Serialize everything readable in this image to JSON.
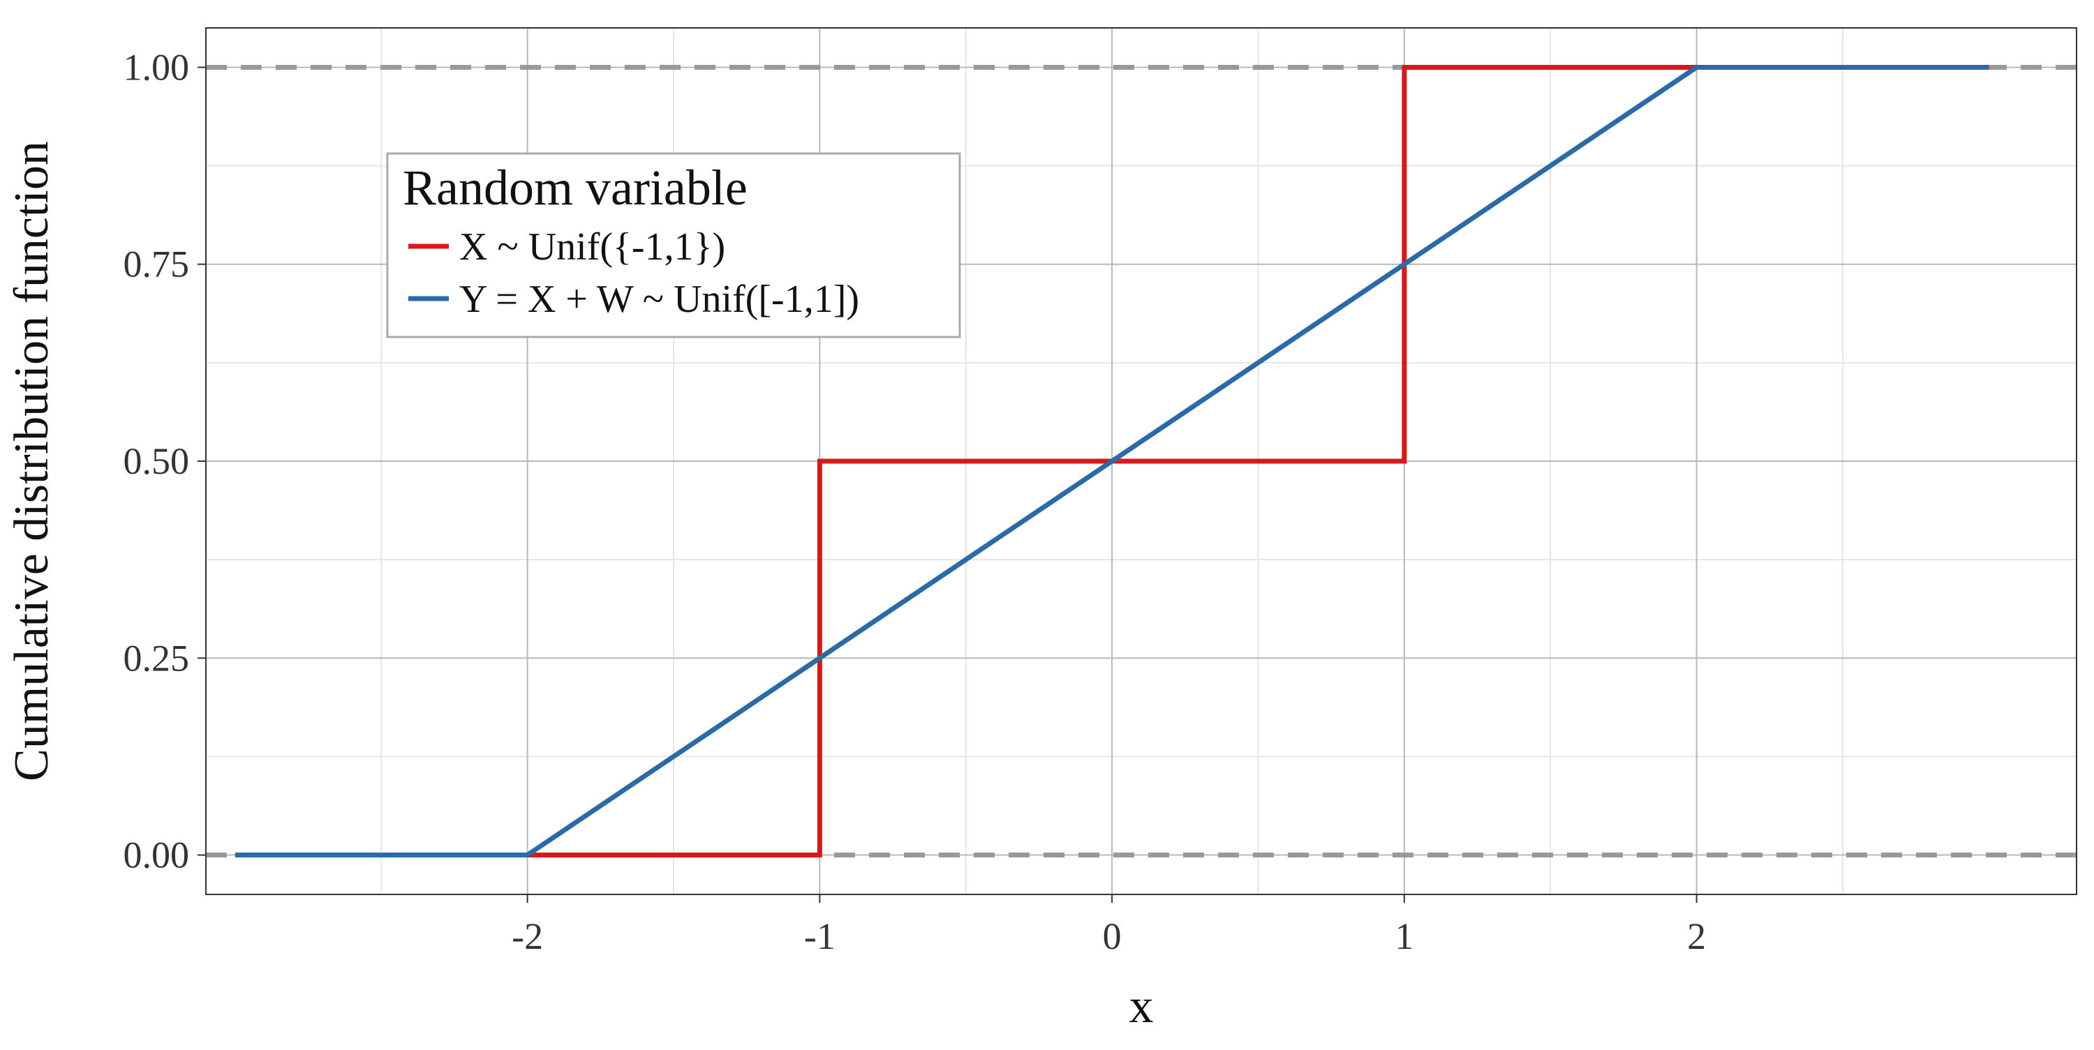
{
  "chart_data": {
    "type": "line",
    "title": "",
    "xlabel": "x",
    "ylabel": "Cumulative distribution function",
    "xlim": [
      -3.1,
      3.3
    ],
    "ylim": [
      -0.05,
      1.05
    ],
    "x_ticks": [
      -2,
      -1,
      0,
      1,
      2
    ],
    "x_tick_labels": [
      "-2",
      "-1",
      "0",
      "1",
      "2"
    ],
    "y_ticks": [
      0,
      0.25,
      0.5,
      0.75,
      1
    ],
    "y_tick_labels": [
      "0.00",
      "0.25",
      "0.50",
      "0.75",
      "1.00"
    ],
    "x_minor_ticks": [
      -2.5,
      -1.5,
      -0.5,
      0.5,
      1.5,
      2.5
    ],
    "y_minor_ticks": [
      0.125,
      0.375,
      0.625,
      0.875
    ],
    "grid": true,
    "reference_lines": [
      0,
      1
    ],
    "legend": {
      "title": "Random variable",
      "position": "top-left"
    },
    "series": [
      {
        "name": "X ~ Unif({-1,1})",
        "color": "#d7191c",
        "x": [
          -3,
          -1,
          -1,
          1,
          1,
          3
        ],
        "y": [
          0,
          0,
          0.5,
          0.5,
          1,
          1
        ]
      },
      {
        "name": "Y = X + W ~ Unif([-1,1])",
        "color": "#2b6aa6",
        "x": [
          -3,
          -2,
          2,
          3
        ],
        "y": [
          0,
          0,
          1,
          1
        ]
      }
    ],
    "colors": {
      "grid_major": "#b8b8b8",
      "grid_minor": "#e6e6e6",
      "reference_line": "#999999",
      "panel_border": "#333333",
      "legend_border": "#aaaaaa"
    }
  }
}
